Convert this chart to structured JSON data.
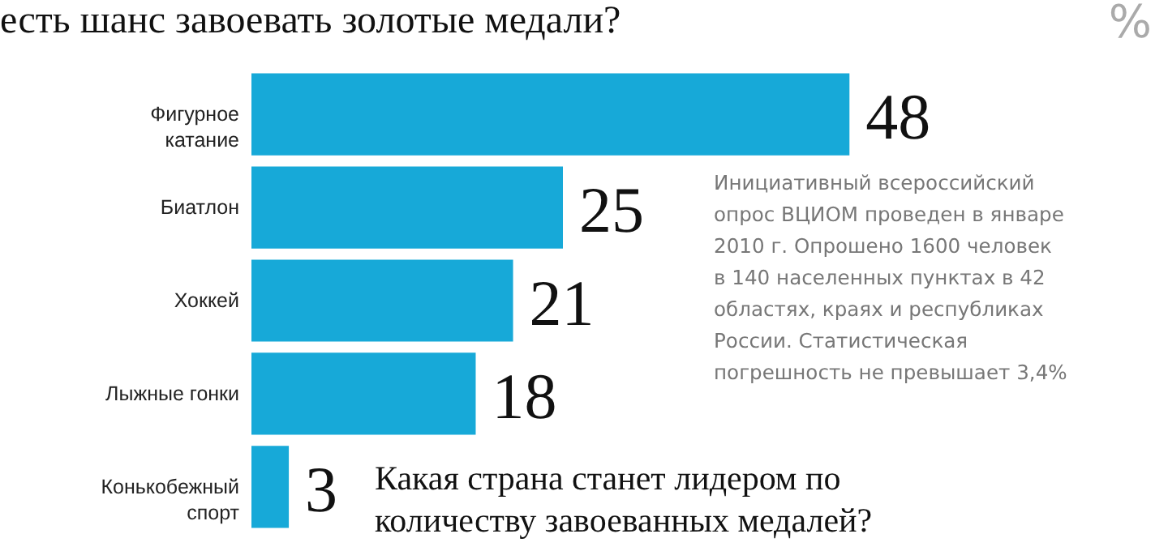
{
  "chart_data": {
    "type": "bar",
    "orientation": "horizontal",
    "title": "есть шанс завоевать золотые медали?",
    "categories": [
      "Фигурное катание",
      "Биатлон",
      "Хоккей",
      "Лыжные гонки",
      "Конькобежный спорт"
    ],
    "values": [
      48,
      25,
      21,
      18,
      3
    ],
    "color": "#17a9d8",
    "data_labels": true,
    "annotations": [
      "%",
      "Инициативный всероссийский опрос ВЦИОМ проведен в январе 2010 г. Опрошено 1600 человек в 140 населенных пунктах в 42 областях, краях и республиках России. Статистическая погрешность не превышает 3,4%",
      "Какая страна станет лидером по количеству завоеванных медалей?"
    ]
  }
}
